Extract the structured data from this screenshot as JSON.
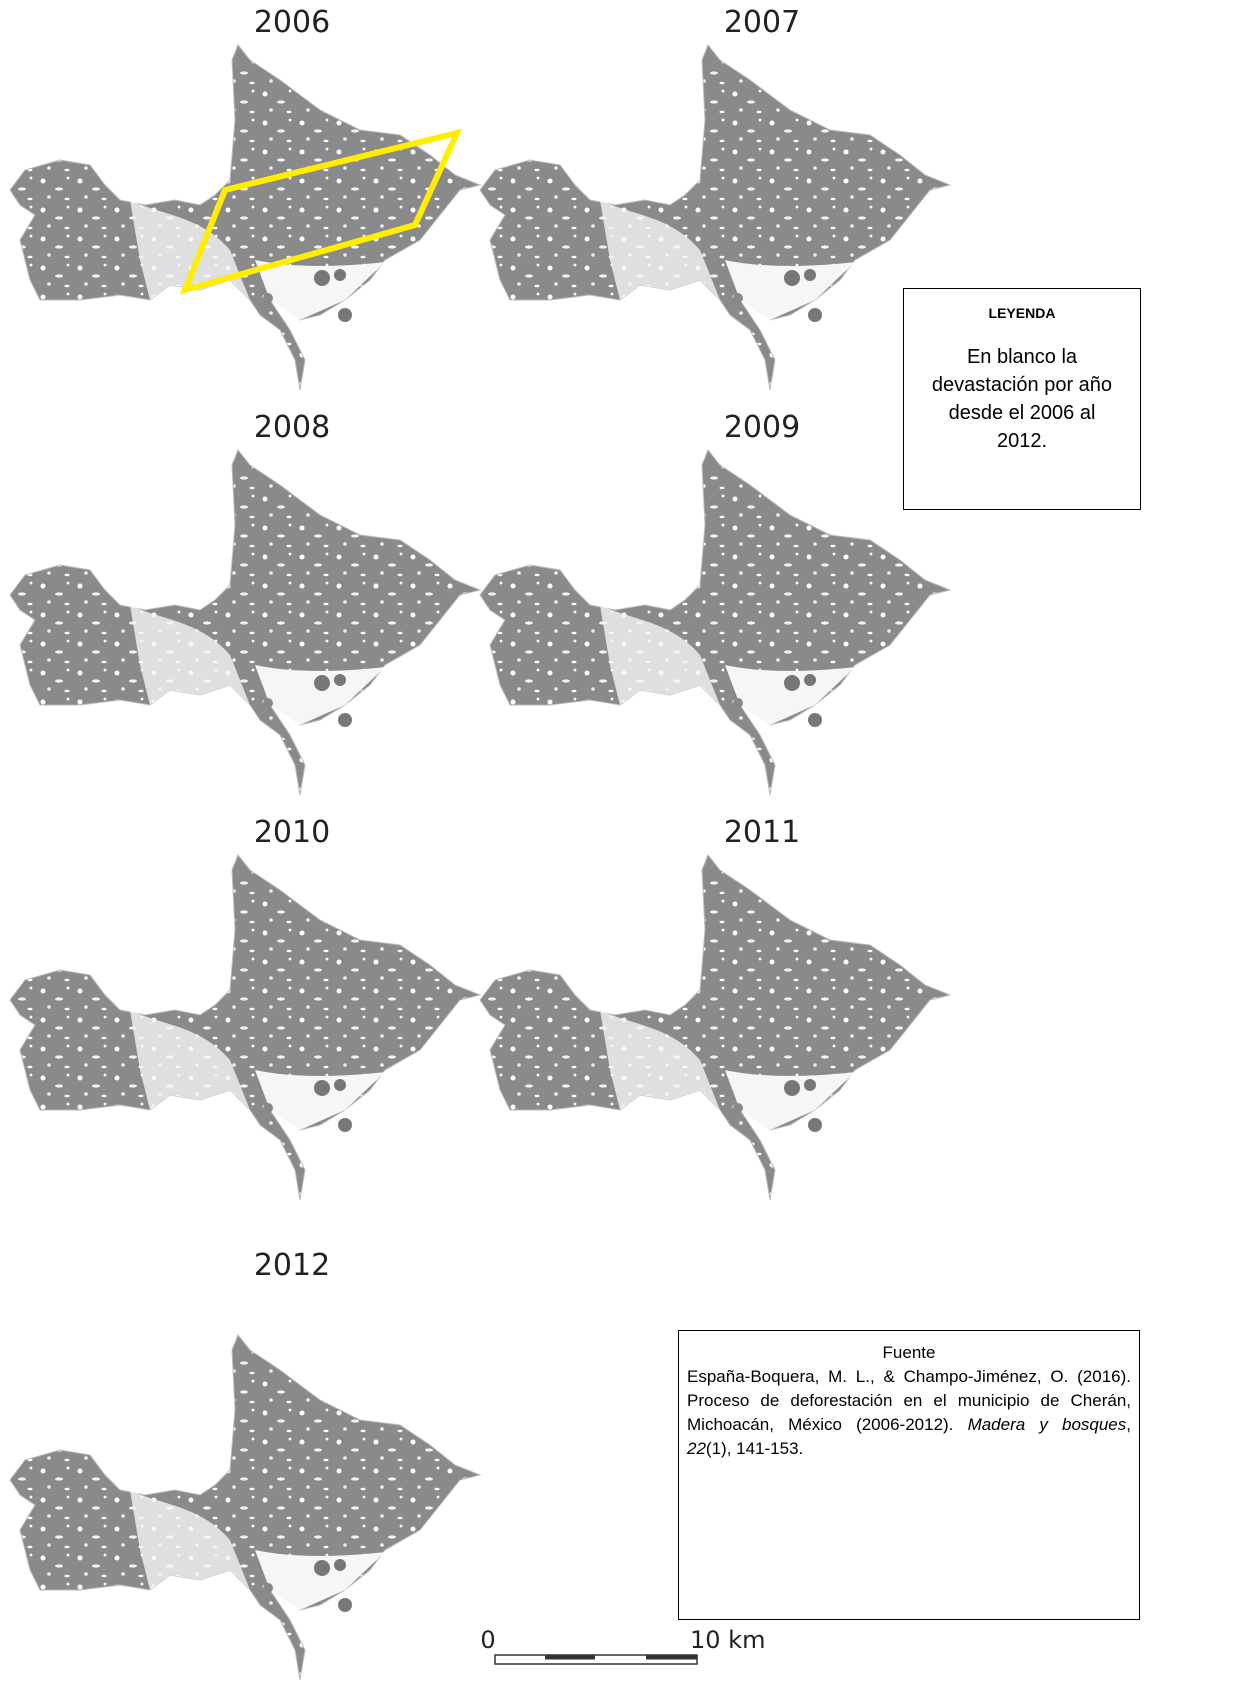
{
  "maps": [
    {
      "year": "2006"
    },
    {
      "year": "2007"
    },
    {
      "year": "2008"
    },
    {
      "year": "2009"
    },
    {
      "year": "2010"
    },
    {
      "year": "2011"
    },
    {
      "year": "2012"
    }
  ],
  "legend": {
    "title": "LEYENDA",
    "text": "En blanco la devastación por año desde el 2006 al 2012."
  },
  "source": {
    "title": "Fuente",
    "parts": [
      {
        "text": "España-Boquera, M. L., & Champo-Jiménez, O. (2016). Proceso de deforestación en el municipio de Cherán, Michoacán, México (2006-2012). ",
        "italic": false
      },
      {
        "text": "Madera y bosques",
        "italic": true
      },
      {
        "text": ", ",
        "italic": false
      },
      {
        "text": "22",
        "italic": true
      },
      {
        "text": "(1), 141-153.",
        "italic": false
      }
    ]
  },
  "scale_bar": {
    "start": "0",
    "end": "10 km"
  }
}
